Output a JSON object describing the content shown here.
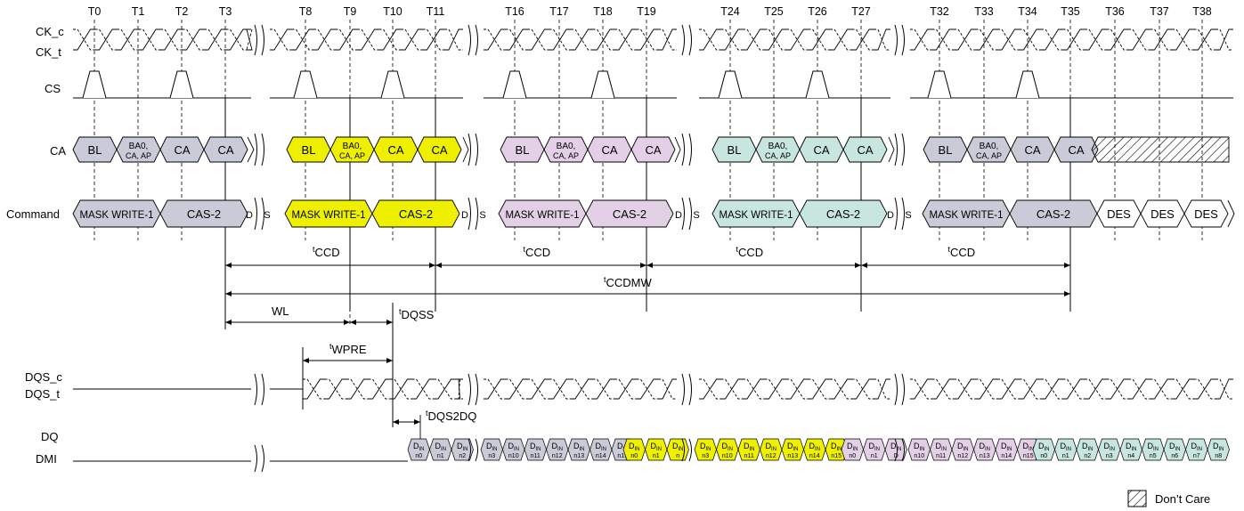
{
  "signals": {
    "ck_c": "CK_c",
    "ck_t": "CK_t",
    "cs": "CS",
    "ca": "CA",
    "command": "Command",
    "dqs_c": "DQS_c",
    "dqs_t": "DQS_t",
    "dq": "DQ",
    "dmi": "DMI"
  },
  "clock_labels": [
    "T0",
    "T1",
    "T2",
    "T3",
    "T8",
    "T9",
    "T10",
    "T11",
    "T16",
    "T17",
    "T18",
    "T19",
    "T24",
    "T25",
    "T26",
    "T27",
    "T32",
    "T33",
    "T34",
    "T35",
    "T36",
    "T37",
    "T38"
  ],
  "colors": {
    "gray": "#c9cbd8",
    "yellow": "#eef000",
    "pink": "#e3cfe6",
    "teal": "#c7e6df",
    "white": "#ffffff"
  },
  "ca_groups": [
    {
      "color": "gray",
      "cells": [
        "BL",
        "BA0,\nCA, AP",
        "CA",
        "CA"
      ]
    },
    {
      "color": "yellow",
      "cells": [
        "BL",
        "BA0,\nCA, AP",
        "CA",
        "CA"
      ]
    },
    {
      "color": "pink",
      "cells": [
        "BL",
        "BA0,\nCA, AP",
        "CA",
        "CA"
      ]
    },
    {
      "color": "teal",
      "cells": [
        "BL",
        "BA0,\nCA, AP",
        "CA",
        "CA"
      ]
    },
    {
      "color": "gray",
      "cells": [
        "BL",
        "BA0,\nCA, AP",
        "CA",
        "CA"
      ]
    }
  ],
  "commands": {
    "mask_write": "MASK WRITE-1",
    "cas": "CAS-2",
    "des": "DES",
    "partial_d": "D",
    "partial_s": "S"
  },
  "timing": {
    "tccd_sup": "t",
    "tccd": "CCD",
    "tccdmw": "CCDMW",
    "wl": "WL",
    "tdqss": "DQSS",
    "twpre": "WPRE",
    "tdqs2dq": "DQS2DQ"
  },
  "dq": {
    "prefix": "D",
    "sub": "IN",
    "groups": [
      {
        "color": "gray",
        "items": [
          "n0",
          "n1",
          "n2"
        ]
      },
      {
        "color": "gray",
        "items": [
          "n3",
          "n10",
          "n11",
          "n12",
          "n13",
          "n14",
          "n15"
        ]
      },
      {
        "color": "yellow",
        "items": [
          "n0",
          "n1",
          "n"
        ]
      },
      {
        "color": "yellow",
        "items": [
          "n3",
          "n10",
          "n11",
          "n12",
          "n13",
          "n14",
          "n15"
        ]
      },
      {
        "color": "pink",
        "items": [
          "n0",
          "n1",
          "D"
        ]
      },
      {
        "color": "pink",
        "items": [
          "n10",
          "n11",
          "n12",
          "n13",
          "n14",
          "n15"
        ]
      },
      {
        "color": "teal",
        "items": [
          "n0",
          "n1",
          "n2",
          "n3",
          "n4",
          "n5",
          "n6",
          "n7",
          "n8"
        ]
      }
    ]
  },
  "legend": {
    "dont_care": "Don’t Care"
  }
}
